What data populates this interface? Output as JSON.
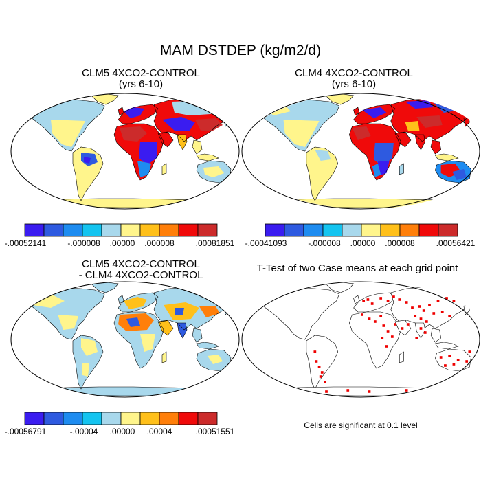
{
  "figure": {
    "title": "MAM DSTDEP (kg/m2/d)"
  },
  "panels": [
    {
      "title_line1": "CLM5 4XCO2-CONTROL",
      "title_line2": "(yrs 6-10)",
      "colorbar": {
        "labels": [
          "-.00052141",
          "-.000008",
          ".00000",
          ".000008",
          ".00081851"
        ]
      }
    },
    {
      "title_line1": "CLM4 4XCO2-CONTROL",
      "title_line2": "(yrs 6-10)",
      "colorbar": {
        "labels": [
          "-.00041093",
          "-.000008",
          ".00000",
          ".000008",
          ".00056421"
        ]
      }
    },
    {
      "title_line1": "CLM5 4XCO2-CONTROL",
      "title_line2": "- CLM4 4XCO2-CONTROL",
      "colorbar": {
        "labels": [
          "-.00056791",
          "-.00004",
          ".00000",
          ".00004",
          ".00051551"
        ]
      }
    },
    {
      "title_line1": "T-Test of two Case means at each grid point",
      "note": "Cells are significant at 0.1 level",
      "significance_color": "#ee0000"
    }
  ],
  "colorbar_colors": [
    "#3a1cf0",
    "#2e5ae0",
    "#1e8cf0",
    "#14c4f0",
    "#a8d8ec",
    "#fff58c",
    "#ffc01a",
    "#ff7f0a",
    "#f00a0a",
    "#cc2b2b"
  ],
  "land_neutral_color": "#fff58c",
  "land_light_blue_color": "#a8d8ec"
}
